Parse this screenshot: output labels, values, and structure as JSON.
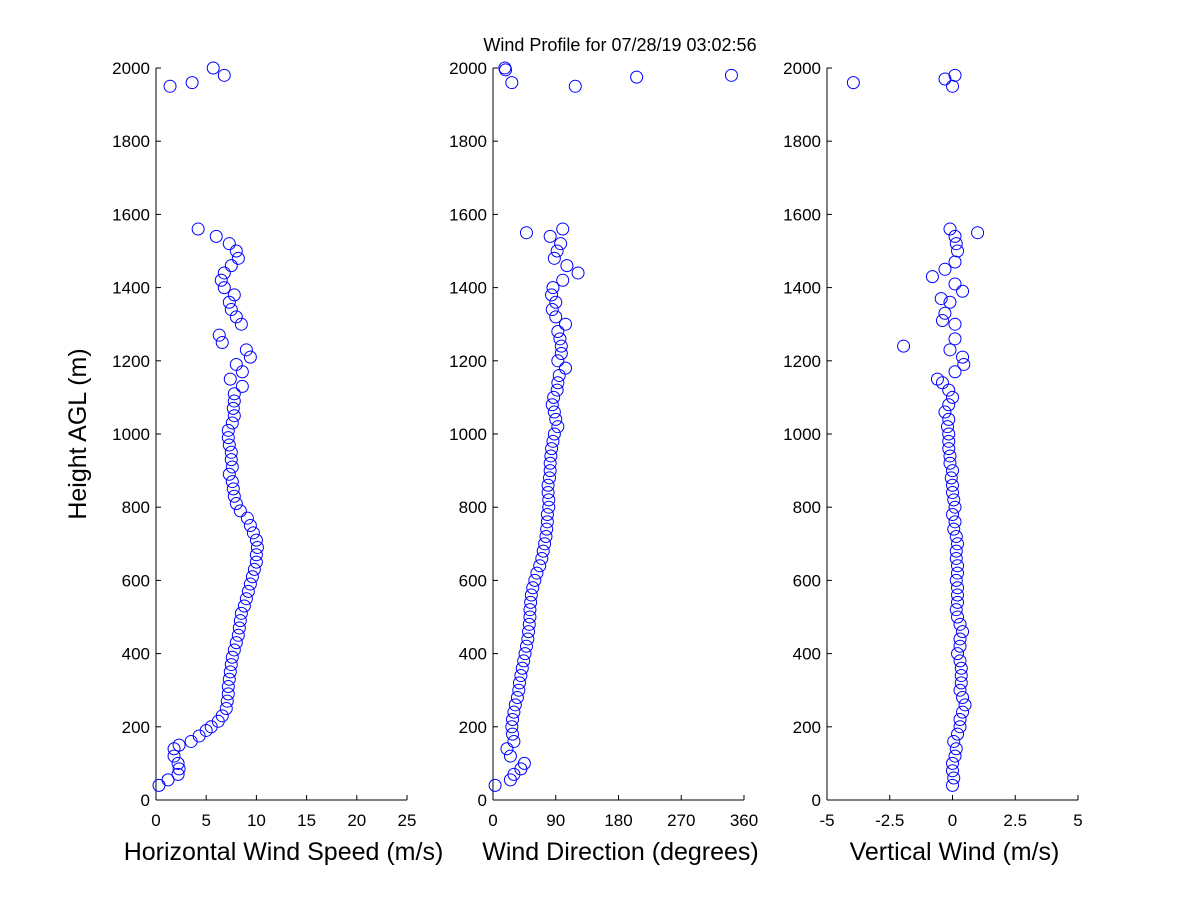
{
  "title": "Wind Profile for  07/28/19 03:02:56",
  "chart_data": [
    {
      "type": "scatter",
      "x_label": "Horizontal Wind Speed (m/s)",
      "y_label": "Height AGL (m)",
      "color": "#0000ff",
      "xlim": [
        0,
        25
      ],
      "xticks": [
        0,
        5,
        10,
        15,
        20,
        25
      ],
      "ylim": [
        0,
        2000
      ],
      "yticks": [
        0,
        200,
        400,
        600,
        800,
        1000,
        1200,
        1400,
        1600,
        1800,
        2000
      ],
      "x": [
        0.3,
        1.2,
        2.2,
        2.3,
        2.2,
        1.8,
        1.8,
        2.3,
        3.5,
        4.3,
        5.0,
        5.5,
        6.2,
        6.6,
        7.0,
        7.1,
        7.2,
        7.2,
        7.3,
        7.4,
        7.5,
        7.6,
        7.8,
        8.0,
        8.2,
        8.3,
        8.4,
        8.5,
        8.8,
        9.0,
        9.2,
        9.4,
        9.6,
        9.8,
        10.0,
        10.0,
        10.1,
        10.0,
        9.7,
        9.4,
        9.1,
        8.4,
        8.0,
        7.8,
        7.7,
        7.6,
        7.3,
        7.6,
        7.5,
        7.5,
        7.3,
        7.2,
        7.2,
        7.6,
        7.8,
        7.7,
        7.8,
        7.8,
        8.6,
        7.4,
        8.6,
        8.0,
        9.4,
        9.0,
        6.6,
        6.3,
        8.5,
        8.0,
        7.5,
        7.3,
        7.8,
        6.8,
        6.5,
        6.8,
        7.5,
        8.2,
        8.0,
        7.3,
        6.0,
        4.2,
        1.4,
        3.6,
        6.8,
        5.7
      ],
      "y": [
        40,
        55,
        70,
        85,
        100,
        120,
        140,
        150,
        160,
        175,
        190,
        200,
        215,
        230,
        250,
        270,
        290,
        310,
        330,
        350,
        370,
        390,
        410,
        430,
        450,
        470,
        490,
        510,
        530,
        550,
        570,
        590,
        610,
        630,
        650,
        670,
        690,
        710,
        730,
        750,
        770,
        790,
        810,
        830,
        850,
        870,
        890,
        910,
        930,
        950,
        970,
        990,
        1010,
        1030,
        1050,
        1070,
        1090,
        1110,
        1130,
        1150,
        1170,
        1190,
        1210,
        1230,
        1250,
        1270,
        1300,
        1320,
        1340,
        1360,
        1380,
        1400,
        1420,
        1440,
        1460,
        1480,
        1500,
        1520,
        1540,
        1560,
        1950,
        1960,
        1980,
        2000
      ]
    },
    {
      "type": "scatter",
      "x_label": "Wind Direction (degrees)",
      "color": "#0000ff",
      "xlim": [
        0,
        360
      ],
      "xticks": [
        0,
        90,
        180,
        270,
        360
      ],
      "ylim": [
        0,
        2000
      ],
      "yticks": [
        0,
        200,
        400,
        600,
        800,
        1000,
        1200,
        1400,
        1600,
        1800,
        2000
      ],
      "x": [
        3,
        25,
        30,
        40,
        45,
        25,
        20,
        30,
        28,
        27,
        28,
        30,
        32,
        35,
        37,
        38,
        40,
        42,
        44,
        46,
        48,
        50,
        51,
        52,
        53,
        53,
        54,
        55,
        57,
        60,
        63,
        67,
        70,
        72,
        74,
        76,
        77,
        78,
        78,
        80,
        80,
        79,
        79,
        81,
        82,
        82,
        83,
        84,
        86,
        88,
        93,
        90,
        88,
        85,
        87,
        92,
        93,
        95,
        104,
        93,
        98,
        98,
        96,
        93,
        104,
        90,
        85,
        90,
        84,
        86,
        100,
        122,
        106,
        88,
        92,
        97,
        82,
        48,
        100,
        118,
        27,
        206,
        342,
        18,
        17
      ],
      "y": [
        40,
        55,
        70,
        85,
        100,
        120,
        140,
        160,
        180,
        200,
        220,
        240,
        260,
        280,
        300,
        320,
        340,
        360,
        380,
        400,
        420,
        440,
        460,
        480,
        500,
        520,
        540,
        560,
        580,
        600,
        620,
        640,
        660,
        680,
        700,
        720,
        740,
        760,
        780,
        800,
        820,
        840,
        860,
        880,
        900,
        920,
        940,
        960,
        980,
        1000,
        1020,
        1040,
        1060,
        1080,
        1100,
        1120,
        1140,
        1160,
        1180,
        1200,
        1220,
        1240,
        1260,
        1280,
        1300,
        1320,
        1340,
        1360,
        1380,
        1400,
        1420,
        1440,
        1460,
        1480,
        1500,
        1520,
        1540,
        1550,
        1560,
        1950,
        1960,
        1975,
        1980,
        1995,
        2000
      ]
    },
    {
      "type": "scatter",
      "x_label": "Vertical Wind (m/s)",
      "color": "#0000ff",
      "xlim": [
        -5,
        5
      ],
      "xticks": [
        -5,
        -2.5,
        0,
        2.5,
        5
      ],
      "ylim": [
        0,
        2000
      ],
      "yticks": [
        0,
        200,
        400,
        600,
        800,
        1000,
        1200,
        1400,
        1600,
        1800,
        2000
      ],
      "x": [
        0.0,
        0.05,
        0.0,
        0.0,
        0.1,
        0.15,
        0.05,
        0.2,
        0.3,
        0.3,
        0.4,
        0.5,
        0.4,
        0.3,
        0.35,
        0.35,
        0.35,
        0.3,
        0.2,
        0.3,
        0.3,
        0.4,
        0.3,
        0.2,
        0.15,
        0.2,
        0.2,
        0.2,
        0.15,
        0.2,
        0.2,
        0.15,
        0.15,
        0.2,
        0.15,
        0.05,
        0.1,
        0.0,
        0.1,
        0.05,
        0.0,
        0.0,
        -0.05,
        0.0,
        -0.1,
        -0.1,
        -0.15,
        -0.15,
        -0.15,
        -0.2,
        -0.15,
        -0.3,
        -0.15,
        0.0,
        -0.15,
        -0.4,
        -0.6,
        0.1,
        0.45,
        0.4,
        -1.95,
        -0.1,
        0.1,
        0.1,
        -0.4,
        -0.3,
        -0.1,
        -0.45,
        0.4,
        0.1,
        -0.8,
        -0.3,
        0.1,
        0.2,
        0.15,
        0.1,
        1.0,
        -0.1,
        0.0,
        -3.95,
        -0.3,
        0.1
      ],
      "y": [
        40,
        60,
        80,
        100,
        120,
        140,
        160,
        180,
        200,
        220,
        240,
        260,
        280,
        300,
        320,
        340,
        360,
        380,
        400,
        420,
        440,
        460,
        480,
        500,
        520,
        540,
        560,
        580,
        600,
        620,
        640,
        660,
        680,
        700,
        720,
        740,
        760,
        780,
        800,
        820,
        840,
        860,
        880,
        900,
        920,
        940,
        960,
        980,
        1000,
        1020,
        1040,
        1060,
        1080,
        1100,
        1120,
        1140,
        1150,
        1170,
        1190,
        1210,
        1240,
        1230,
        1260,
        1300,
        1310,
        1330,
        1360,
        1370,
        1390,
        1410,
        1430,
        1450,
        1470,
        1500,
        1520,
        1540,
        1550,
        1560,
        1950,
        1960,
        1970,
        1980
      ]
    }
  ]
}
